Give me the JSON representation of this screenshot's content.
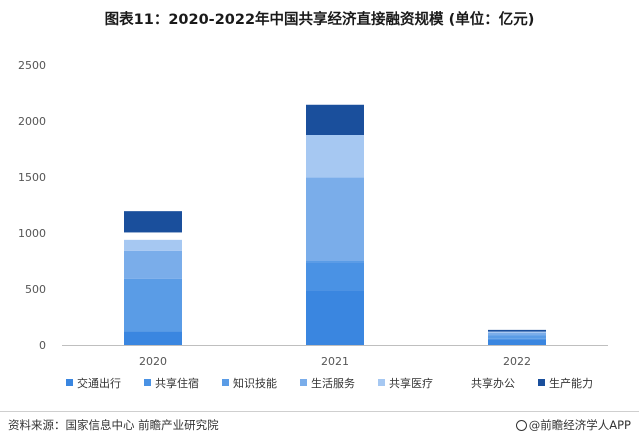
{
  "title": "图表11：2020-2022年中国共享经济直接融资规模 (单位：亿元)",
  "footer": {
    "source": "资料来源：国家信息中心 前瞻产业研究院",
    "brand": "@前瞻经济学人APP"
  },
  "chart_data": {
    "type": "bar",
    "stacked": true,
    "categories": [
      "2020",
      "2021",
      "2022"
    ],
    "ylim": [
      0,
      2500
    ],
    "yticks": [
      0,
      500,
      1000,
      1500,
      2000,
      2500
    ],
    "grid": false,
    "legend_position": "bottom",
    "series": [
      {
        "name": "交通出行",
        "color": "#3a86e0",
        "values": [
          120,
          490,
          50
        ]
      },
      {
        "name": "共享住宿",
        "color": "#4a92e4",
        "values": [
          0,
          250,
          5
        ]
      },
      {
        "name": "知识技能",
        "color": "#5a9ce6",
        "values": [
          470,
          10,
          30
        ]
      },
      {
        "name": "生活服务",
        "color": "#7aadea",
        "values": [
          250,
          745,
          25
        ]
      },
      {
        "name": "共享医疗",
        "color": "#a6c8f2",
        "values": [
          100,
          380,
          10
        ]
      },
      {
        "name": "共享办公",
        "color": "#ffffff",
        "values": [
          65,
          0,
          0
        ]
      },
      {
        "name": "生产能力",
        "color": "#1a4f9c",
        "values": [
          190,
          270,
          15
        ]
      }
    ]
  }
}
